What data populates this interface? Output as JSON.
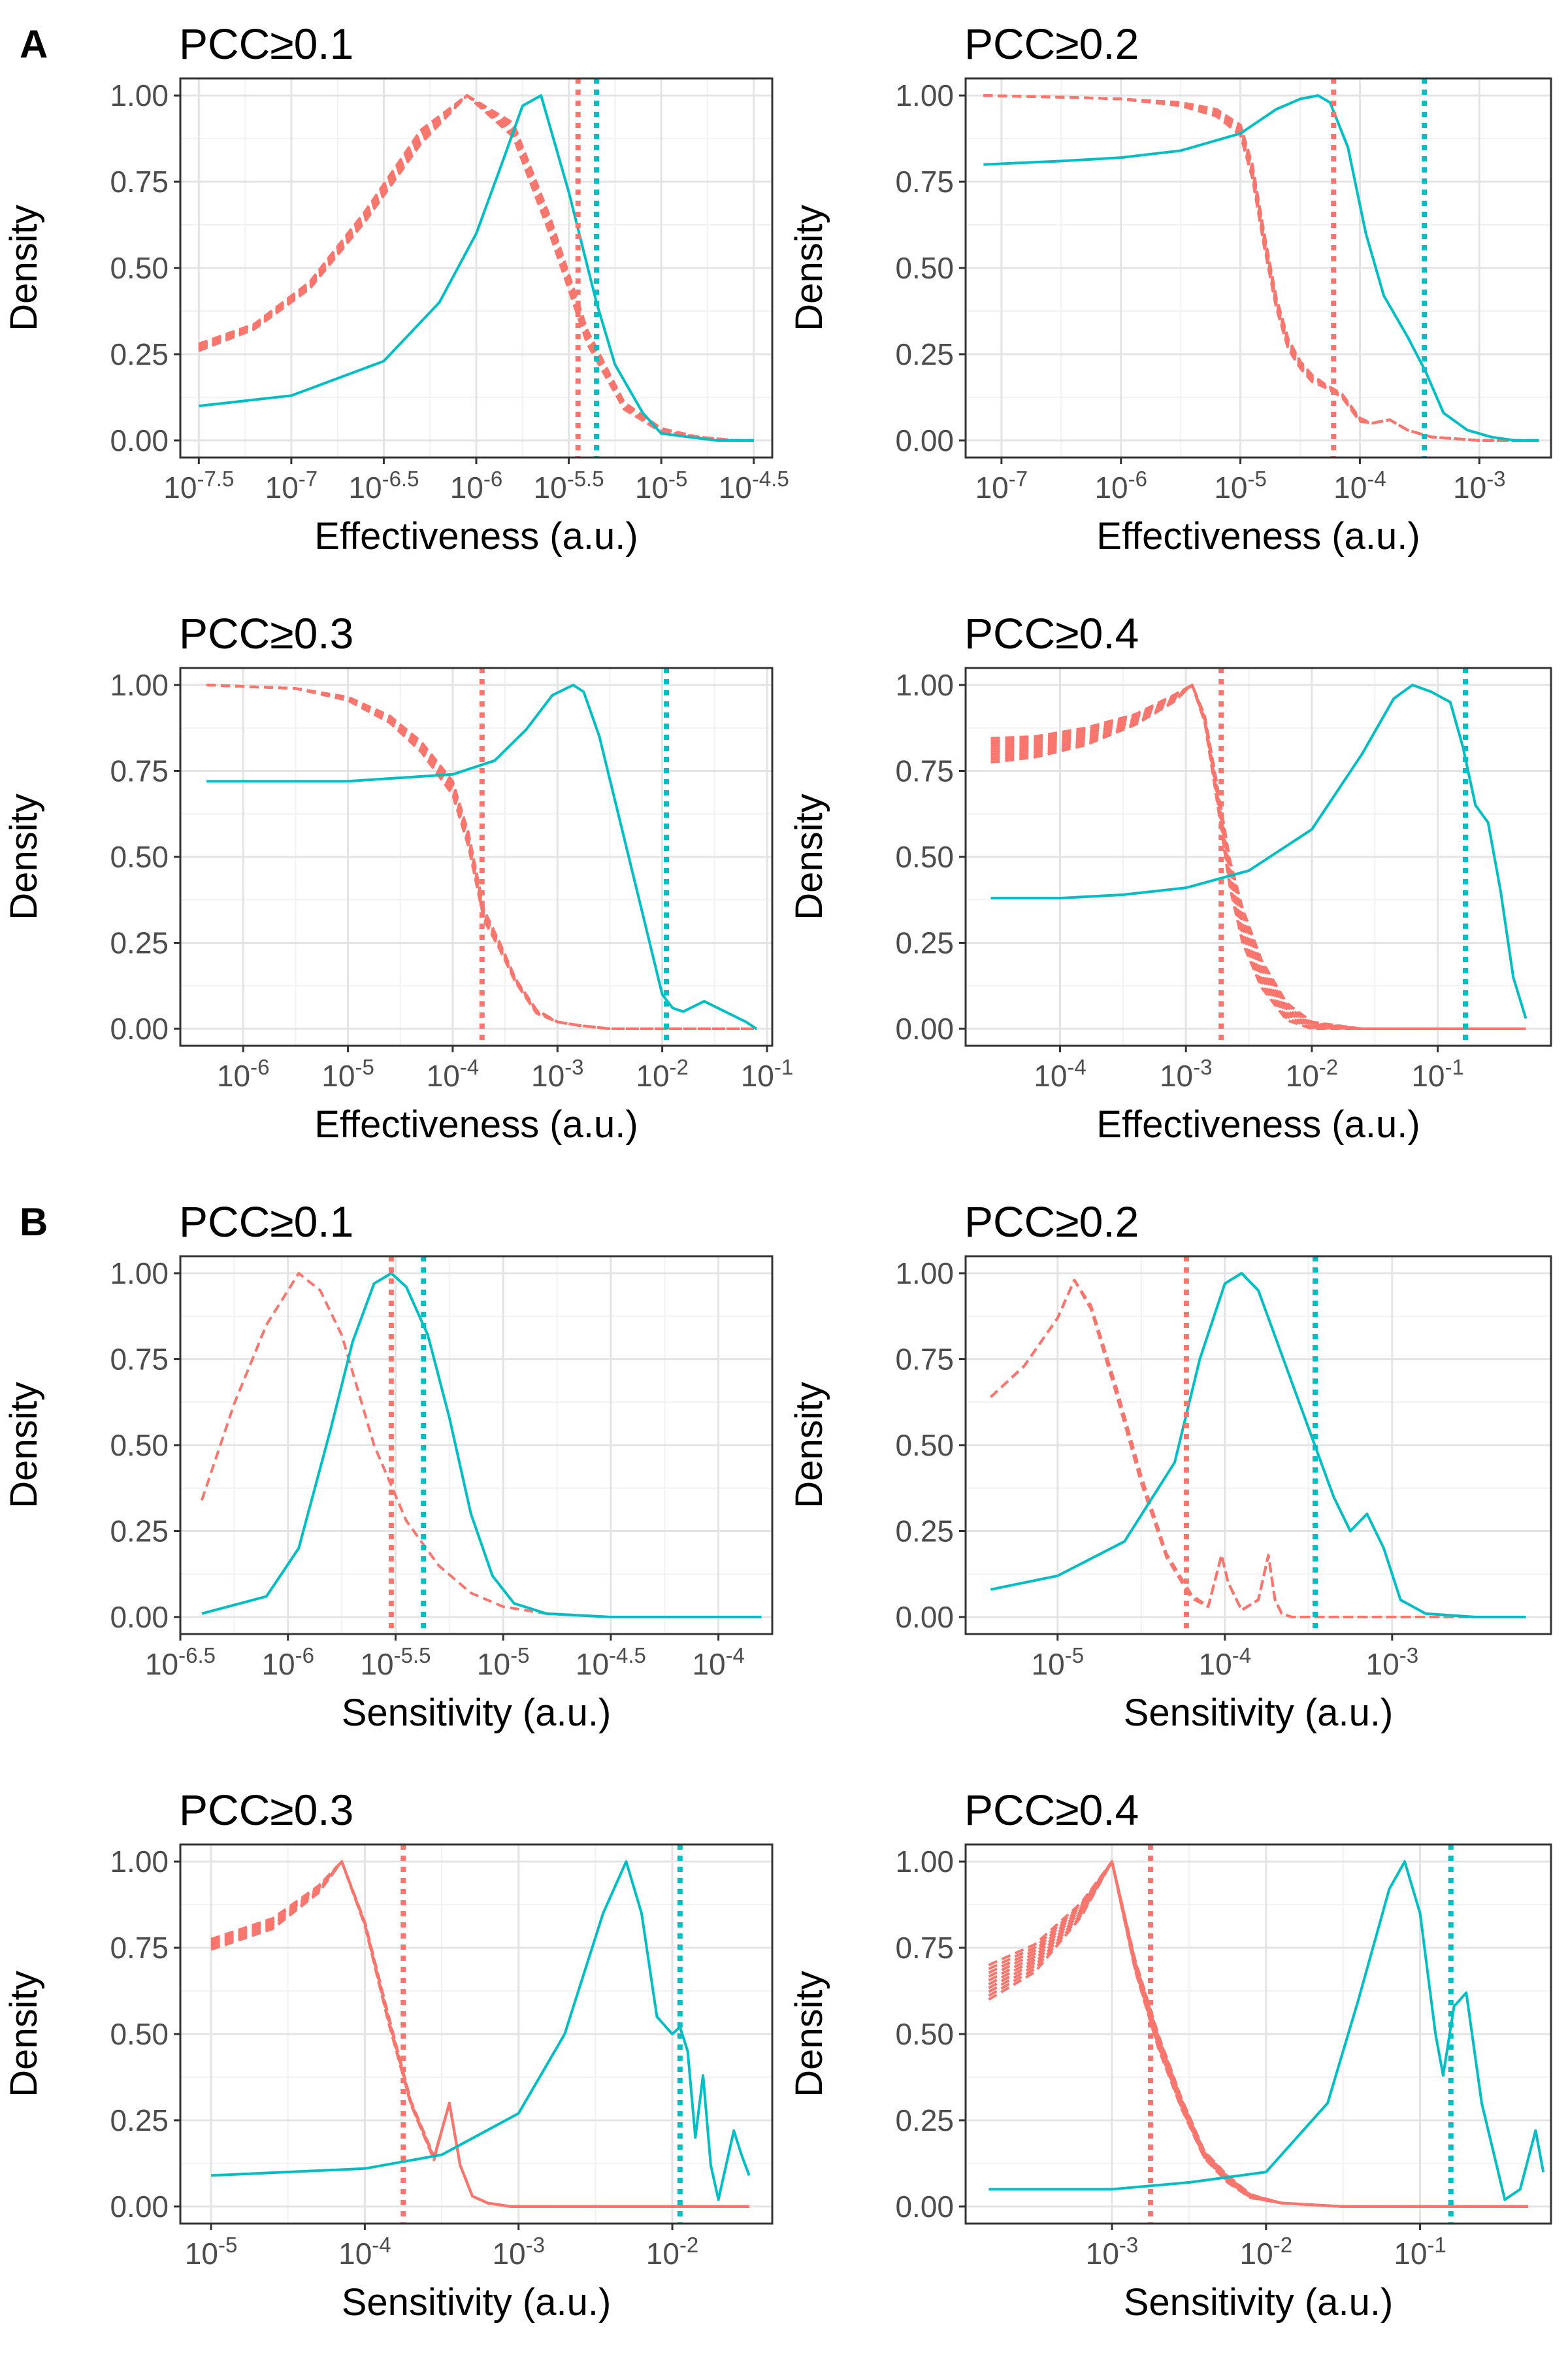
{
  "panel_letters": [
    "A",
    "B"
  ],
  "chart_data": [
    {
      "type": "line",
      "panel": "A",
      "title": "PCC≥0.1",
      "xlabel": "Effectiveness (a.u.)",
      "ylabel": "Density",
      "xscale": "log10",
      "xlim": [
        -7.6,
        -4.4
      ],
      "ylim": [
        0,
        1
      ],
      "xticks": [
        {
          "e": -7.5,
          "sup": "-7.5"
        },
        {
          "e": -7,
          "sup": "-7"
        },
        {
          "e": -6.5,
          "sup": "-6.5"
        },
        {
          "e": -6,
          "sup": "-6"
        },
        {
          "e": -5.5,
          "sup": "-5.5"
        },
        {
          "e": -5,
          "sup": "-5"
        },
        {
          "e": -4.5,
          "sup": "-4.5"
        }
      ],
      "yticks": [
        "0.00",
        "0.25",
        "0.50",
        "0.75",
        "1.00"
      ],
      "null_series": {
        "style": "dashed",
        "color": "#F8766D",
        "x": [
          -7.5,
          -7.2,
          -6.9,
          -6.6,
          -6.3,
          -6.05,
          -5.8,
          -5.6,
          -5.4,
          -5.2,
          -5.0,
          -4.8,
          -4.6,
          -4.5
        ],
        "y": [
          0.27,
          0.33,
          0.45,
          0.65,
          0.88,
          1.0,
          0.9,
          0.62,
          0.3,
          0.1,
          0.03,
          0.01,
          0.0,
          0.0
        ],
        "count": 10,
        "spread": [
          0.02,
          0.015,
          0.02,
          0.03,
          0.04,
          0.0,
          0.04,
          0.05,
          0.04,
          0.02,
          0.01,
          0,
          0,
          0
        ]
      },
      "observed": {
        "style": "solid",
        "color": "#00BFC4",
        "x": [
          -7.5,
          -7.0,
          -6.5,
          -6.2,
          -6.0,
          -5.85,
          -5.75,
          -5.65,
          -5.5,
          -5.35,
          -5.25,
          -5.1,
          -5.0,
          -4.85,
          -4.7,
          -4.5
        ],
        "y": [
          0.1,
          0.13,
          0.23,
          0.4,
          0.6,
          0.82,
          0.97,
          1.0,
          0.72,
          0.4,
          0.22,
          0.08,
          0.02,
          0.01,
          0.0,
          0.0
        ]
      },
      "vline_null": -5.45,
      "vline_observed": -5.35
    },
    {
      "type": "line",
      "panel": "A",
      "title": "PCC≥0.2",
      "xlabel": "Effectiveness (a.u.)",
      "ylabel": "Density",
      "xscale": "log10",
      "xlim": [
        -7.3,
        -2.4
      ],
      "ylim": [
        0,
        1
      ],
      "xticks": [
        {
          "e": -7,
          "sup": "-7"
        },
        {
          "e": -6,
          "sup": "-6"
        },
        {
          "e": -5,
          "sup": "-5"
        },
        {
          "e": -4,
          "sup": "-4"
        },
        {
          "e": -3,
          "sup": "-3"
        }
      ],
      "yticks": [
        "0.00",
        "0.25",
        "0.50",
        "0.75",
        "1.00"
      ],
      "null_series": {
        "style": "dashed",
        "color": "#F8766D",
        "x": [
          -7.15,
          -6.5,
          -6.0,
          -5.5,
          -5.2,
          -5.0,
          -4.9,
          -4.8,
          -4.7,
          -4.6,
          -4.5,
          -4.4,
          -4.3,
          -4.15,
          -4.0,
          -3.9,
          -3.75,
          -3.6,
          -3.4,
          -3.0,
          -2.5
        ],
        "y": [
          1.0,
          0.995,
          0.99,
          0.975,
          0.95,
          0.9,
          0.78,
          0.58,
          0.4,
          0.28,
          0.22,
          0.18,
          0.16,
          0.13,
          0.06,
          0.05,
          0.06,
          0.03,
          0.01,
          0.0,
          0.0
        ],
        "count": 8,
        "spread": [
          0,
          0,
          0,
          0.01,
          0.02,
          0.03,
          0.04,
          0.04,
          0.03,
          0.03,
          0.02,
          0.02,
          0.01,
          0.01,
          0.01,
          0,
          0,
          0,
          0,
          0,
          0
        ]
      },
      "observed": {
        "style": "solid",
        "color": "#00BFC4",
        "x": [
          -7.15,
          -6.5,
          -6.0,
          -5.5,
          -5.0,
          -4.7,
          -4.5,
          -4.35,
          -4.25,
          -4.1,
          -3.95,
          -3.8,
          -3.6,
          -3.45,
          -3.3,
          -3.1,
          -2.9,
          -2.7,
          -2.5
        ],
        "y": [
          0.8,
          0.81,
          0.82,
          0.84,
          0.89,
          0.96,
          0.99,
          1.0,
          0.98,
          0.85,
          0.6,
          0.42,
          0.3,
          0.2,
          0.08,
          0.03,
          0.01,
          0.0,
          0.0
        ]
      },
      "vline_null": -4.22,
      "vline_observed": -3.46
    },
    {
      "type": "line",
      "panel": "A",
      "title": "PCC≥0.3",
      "xlabel": "Effectiveness (a.u.)",
      "ylabel": "Density",
      "xscale": "log10",
      "xlim": [
        -6.6,
        -0.95
      ],
      "ylim": [
        0,
        1
      ],
      "xticks": [
        {
          "e": -6,
          "sup": "-6"
        },
        {
          "e": -5,
          "sup": "-5"
        },
        {
          "e": -4,
          "sup": "-4"
        },
        {
          "e": -3,
          "sup": "-3"
        },
        {
          "e": -2,
          "sup": "-2"
        },
        {
          "e": -1,
          "sup": "-1"
        }
      ],
      "yticks": [
        "0.00",
        "0.25",
        "0.50",
        "0.75",
        "1.00"
      ],
      "null_series": {
        "style": "dashed",
        "color": "#F8766D",
        "x": [
          -6.35,
          -5.5,
          -5.0,
          -4.6,
          -4.3,
          -4.0,
          -3.85,
          -3.7,
          -3.55,
          -3.4,
          -3.2,
          -3.0,
          -2.8,
          -2.5,
          -2.0,
          -1.5,
          -1.1
        ],
        "y": [
          1.0,
          0.99,
          0.96,
          0.9,
          0.82,
          0.7,
          0.55,
          0.33,
          0.24,
          0.14,
          0.05,
          0.02,
          0.01,
          0.0,
          0.0,
          0.0,
          0.0
        ],
        "count": 8,
        "spread": [
          0,
          0,
          0.01,
          0.02,
          0.03,
          0.04,
          0.04,
          0.03,
          0.02,
          0.01,
          0.01,
          0,
          0,
          0,
          0,
          0,
          0
        ]
      },
      "observed": {
        "style": "solid",
        "color": "#00BFC4",
        "x": [
          -6.35,
          -5.0,
          -4.5,
          -4.0,
          -3.6,
          -3.3,
          -3.05,
          -2.85,
          -2.75,
          -2.6,
          -2.4,
          -2.2,
          -2.0,
          -1.9,
          -1.8,
          -1.6,
          -1.4,
          -1.2,
          -1.1
        ],
        "y": [
          0.72,
          0.72,
          0.73,
          0.74,
          0.78,
          0.87,
          0.97,
          1.0,
          0.98,
          0.85,
          0.6,
          0.35,
          0.1,
          0.06,
          0.05,
          0.08,
          0.05,
          0.02,
          0.0
        ]
      },
      "vline_null": -3.72,
      "vline_observed": -1.96
    },
    {
      "type": "line",
      "panel": "A",
      "title": "PCC≥0.4",
      "xlabel": "Effectiveness (a.u.)",
      "ylabel": "Density",
      "xscale": "log10",
      "xlim": [
        -4.75,
        -0.1
      ],
      "ylim": [
        0,
        1
      ],
      "xticks": [
        {
          "e": -4,
          "sup": "-4"
        },
        {
          "e": -3,
          "sup": "-3"
        },
        {
          "e": -2,
          "sup": "-2"
        },
        {
          "e": -1,
          "sup": "-1"
        }
      ],
      "yticks": [
        "0.00",
        "0.25",
        "0.50",
        "0.75",
        "1.00"
      ],
      "null_series": {
        "style": "dashed",
        "color": "#F8766D",
        "x": [
          -4.55,
          -4.2,
          -3.8,
          -3.4,
          -3.1,
          -2.95,
          -2.85,
          -2.75,
          -2.65,
          -2.55,
          -2.4,
          -2.2,
          -2.0,
          -1.6,
          -1.0,
          -0.5,
          -0.3
        ],
        "y": [
          0.81,
          0.82,
          0.85,
          0.9,
          0.96,
          1.0,
          0.9,
          0.68,
          0.45,
          0.3,
          0.16,
          0.05,
          0.01,
          0.0,
          0.0,
          0.0,
          0.0
        ],
        "count": 10,
        "spread": [
          0.07,
          0.06,
          0.05,
          0.03,
          0.02,
          0,
          0.02,
          0.05,
          0.08,
          0.1,
          0.08,
          0.05,
          0.02,
          0,
          0,
          0,
          0
        ]
      },
      "observed": {
        "style": "solid",
        "color": "#00BFC4",
        "x": [
          -4.55,
          -4.0,
          -3.5,
          -3.0,
          -2.5,
          -2.0,
          -1.6,
          -1.35,
          -1.2,
          -1.05,
          -0.9,
          -0.8,
          -0.7,
          -0.6,
          -0.5,
          -0.4,
          -0.3
        ],
        "y": [
          0.38,
          0.38,
          0.39,
          0.41,
          0.46,
          0.58,
          0.8,
          0.96,
          1.0,
          0.98,
          0.95,
          0.82,
          0.65,
          0.6,
          0.4,
          0.15,
          0.03
        ]
      },
      "vline_null": -2.72,
      "vline_observed": -0.78
    },
    {
      "type": "line",
      "panel": "B",
      "title": "PCC≥0.1",
      "xlabel": "Sensitivity (a.u.)",
      "ylabel": "Density",
      "xscale": "log10",
      "xlim": [
        -6.5,
        -3.75
      ],
      "ylim": [
        0,
        1
      ],
      "xticks": [
        {
          "e": -6.5,
          "sup": "-6.5"
        },
        {
          "e": -6,
          "sup": "-6"
        },
        {
          "e": -5.5,
          "sup": "-5.5"
        },
        {
          "e": -5,
          "sup": "-5"
        },
        {
          "e": -4.5,
          "sup": "-4.5"
        },
        {
          "e": -4,
          "sup": "-4"
        }
      ],
      "yticks": [
        "0.00",
        "0.25",
        "0.50",
        "0.75",
        "1.00"
      ],
      "null_series": {
        "style": "dashed",
        "color": "#F8766D",
        "x": [
          -6.4,
          -6.25,
          -6.1,
          -5.95,
          -5.85,
          -5.75,
          -5.6,
          -5.45,
          -5.3,
          -5.15,
          -5.0,
          -4.8,
          -4.5,
          -4.0,
          -3.8
        ],
        "y": [
          0.34,
          0.62,
          0.85,
          1.0,
          0.95,
          0.82,
          0.5,
          0.28,
          0.15,
          0.07,
          0.03,
          0.01,
          0.0,
          0.0,
          0.0
        ],
        "count": 1,
        "spread": [
          0,
          0,
          0,
          0,
          0,
          0,
          0,
          0,
          0,
          0,
          0,
          0,
          0,
          0,
          0
        ]
      },
      "observed": {
        "style": "solid",
        "color": "#00BFC4",
        "x": [
          -6.4,
          -6.1,
          -5.95,
          -5.8,
          -5.7,
          -5.6,
          -5.52,
          -5.45,
          -5.35,
          -5.25,
          -5.15,
          -5.05,
          -4.95,
          -4.8,
          -4.5,
          -4.0,
          -3.8
        ],
        "y": [
          0.01,
          0.06,
          0.2,
          0.55,
          0.8,
          0.97,
          1.0,
          0.96,
          0.82,
          0.58,
          0.3,
          0.12,
          0.04,
          0.01,
          0.0,
          0.0,
          0.0
        ]
      },
      "vline_null": -5.52,
      "vline_observed": -5.37
    },
    {
      "type": "line",
      "panel": "B",
      "title": "PCC≥0.2",
      "xlabel": "Sensitivity (a.u.)",
      "ylabel": "Density",
      "xscale": "log10",
      "xlim": [
        -5.55,
        -2.05
      ],
      "ylim": [
        0,
        1
      ],
      "xticks": [
        {
          "e": -5,
          "sup": "-5"
        },
        {
          "e": -4,
          "sup": "-4"
        },
        {
          "e": -3,
          "sup": "-3"
        }
      ],
      "yticks": [
        "0.00",
        "0.25",
        "0.50",
        "0.75",
        "1.00"
      ],
      "null_series": {
        "style": "dashed",
        "color": "#F8766D",
        "x": [
          -5.4,
          -5.2,
          -5.0,
          -4.9,
          -4.8,
          -4.65,
          -4.5,
          -4.35,
          -4.2,
          -4.1,
          -4.02,
          -3.98,
          -3.9,
          -3.8,
          -3.74,
          -3.7,
          -3.66,
          -3.6,
          -3.4,
          -3.0,
          -2.2
        ],
        "y": [
          0.64,
          0.73,
          0.87,
          0.98,
          0.9,
          0.66,
          0.4,
          0.18,
          0.06,
          0.03,
          0.18,
          0.1,
          0.02,
          0.05,
          0.18,
          0.05,
          0.01,
          0.0,
          0.0,
          0.0,
          0.0
        ],
        "count": 3,
        "spread": [
          0,
          0,
          0,
          0,
          0.01,
          0.02,
          0.02,
          0.01,
          0.01,
          0,
          0,
          0,
          0,
          0,
          0,
          0,
          0,
          0,
          0,
          0,
          0
        ]
      },
      "observed": {
        "style": "solid",
        "color": "#00BFC4",
        "x": [
          -5.4,
          -5.0,
          -4.6,
          -4.3,
          -4.15,
          -4.0,
          -3.9,
          -3.8,
          -3.65,
          -3.5,
          -3.35,
          -3.25,
          -3.15,
          -3.05,
          -2.95,
          -2.8,
          -2.5,
          -2.2
        ],
        "y": [
          0.08,
          0.12,
          0.22,
          0.45,
          0.75,
          0.97,
          1.0,
          0.95,
          0.75,
          0.55,
          0.35,
          0.25,
          0.3,
          0.2,
          0.05,
          0.01,
          0.0,
          0.0
        ]
      },
      "vline_null": -4.23,
      "vline_observed": -3.46
    },
    {
      "type": "line",
      "panel": "B",
      "title": "PCC≥0.3",
      "xlabel": "Sensitivity (a.u.)",
      "ylabel": "Density",
      "xscale": "log10",
      "xlim": [
        -5.2,
        -1.35
      ],
      "ylim": [
        0,
        1
      ],
      "xticks": [
        {
          "e": -5,
          "sup": "-5"
        },
        {
          "e": -4,
          "sup": "-4"
        },
        {
          "e": -3,
          "sup": "-3"
        },
        {
          "e": -2,
          "sup": "-2"
        }
      ],
      "yticks": [
        "0.00",
        "0.25",
        "0.50",
        "0.75",
        "1.00"
      ],
      "null_series": {
        "style": "dashed",
        "color": "#F8766D",
        "x": [
          -5.0,
          -4.6,
          -4.3,
          -4.15,
          -4.0,
          -3.85,
          -3.7,
          -3.55,
          -3.5,
          -3.45,
          -3.38,
          -3.3,
          -3.2,
          -3.05,
          -2.9,
          -2.5,
          -2.0,
          -1.5
        ],
        "y": [
          0.76,
          0.82,
          0.92,
          1.0,
          0.82,
          0.55,
          0.3,
          0.14,
          0.22,
          0.3,
          0.12,
          0.03,
          0.01,
          0.0,
          0.0,
          0.0,
          0.0,
          0.0
        ],
        "count": 8,
        "spread": [
          0.03,
          0.03,
          0.02,
          0,
          0.01,
          0.02,
          0.01,
          0.01,
          0,
          0,
          0,
          0,
          0,
          0,
          0,
          0,
          0,
          0
        ]
      },
      "observed": {
        "style": "solid",
        "color": "#00BFC4",
        "x": [
          -5.0,
          -4.0,
          -3.5,
          -3.0,
          -2.7,
          -2.45,
          -2.3,
          -2.2,
          -2.1,
          -2.0,
          -1.95,
          -1.9,
          -1.85,
          -1.8,
          -1.75,
          -1.7,
          -1.6,
          -1.55,
          -1.5
        ],
        "y": [
          0.09,
          0.11,
          0.15,
          0.27,
          0.5,
          0.85,
          1.0,
          0.85,
          0.55,
          0.5,
          0.52,
          0.45,
          0.2,
          0.38,
          0.12,
          0.02,
          0.22,
          0.15,
          0.09
        ]
      },
      "vline_null": -3.75,
      "vline_observed": -1.95
    },
    {
      "type": "line",
      "panel": "B",
      "title": "PCC≥0.4",
      "xlabel": "Sensitivity (a.u.)",
      "ylabel": "Density",
      "xscale": "log10",
      "xlim": [
        -3.95,
        -0.15
      ],
      "ylim": [
        0,
        1
      ],
      "xticks": [
        {
          "e": -3,
          "sup": "-3"
        },
        {
          "e": -2,
          "sup": "-2"
        },
        {
          "e": -1,
          "sup": "-1"
        }
      ],
      "yticks": [
        "0.00",
        "0.25",
        "0.50",
        "0.75",
        "1.00"
      ],
      "null_series": {
        "style": "dashed",
        "color": "#F8766D",
        "x": [
          -3.8,
          -3.5,
          -3.2,
          -3.0,
          -2.85,
          -2.7,
          -2.55,
          -2.4,
          -2.25,
          -2.1,
          -1.9,
          -1.5,
          -1.0,
          -0.3
        ],
        "y": [
          0.65,
          0.72,
          0.86,
          1.0,
          0.7,
          0.48,
          0.3,
          0.15,
          0.08,
          0.03,
          0.01,
          0.0,
          0.0,
          0.0
        ],
        "count": 10,
        "spread": [
          0.1,
          0.08,
          0.04,
          0,
          0.03,
          0.04,
          0.03,
          0.02,
          0.02,
          0.01,
          0,
          0,
          0,
          0
        ]
      },
      "observed": {
        "style": "solid",
        "color": "#00BFC4",
        "x": [
          -3.8,
          -3.0,
          -2.5,
          -2.0,
          -1.6,
          -1.4,
          -1.2,
          -1.1,
          -1.0,
          -0.9,
          -0.85,
          -0.78,
          -0.7,
          -0.6,
          -0.45,
          -0.35,
          -0.25,
          -0.2
        ],
        "y": [
          0.05,
          0.05,
          0.07,
          0.1,
          0.3,
          0.6,
          0.92,
          1.0,
          0.85,
          0.5,
          0.38,
          0.58,
          0.62,
          0.3,
          0.02,
          0.05,
          0.22,
          0.1
        ]
      },
      "vline_null": -2.75,
      "vline_observed": -0.8
    }
  ]
}
